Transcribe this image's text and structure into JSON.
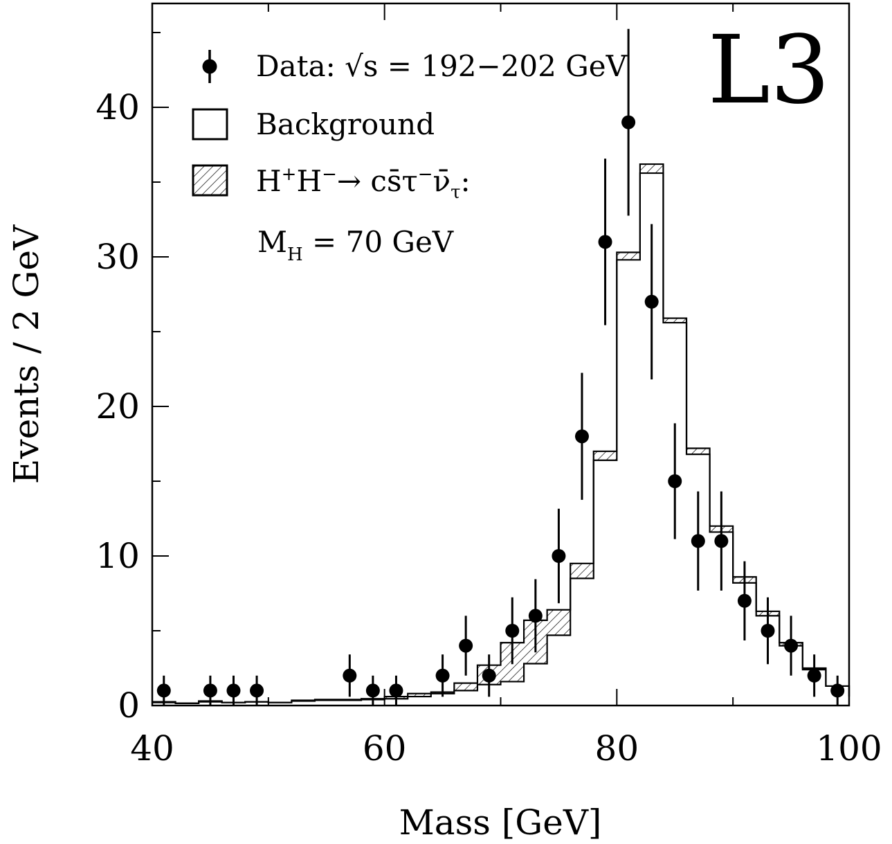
{
  "chart_data": {
    "type": "histogram",
    "xlabel": "Mass   [GeV]",
    "ylabel": "Events / 2 GeV",
    "xlim": [
      40,
      100
    ],
    "ylim": [
      0,
      47
    ],
    "x_ticks": [
      40,
      60,
      80,
      100
    ],
    "y_ticks": [
      0,
      10,
      20,
      30,
      40
    ],
    "experiment_label": "L3",
    "bin_width": 2,
    "bin_edges": [
      40,
      42,
      44,
      46,
      48,
      50,
      52,
      54,
      56,
      58,
      60,
      62,
      64,
      66,
      68,
      70,
      72,
      74,
      76,
      78,
      80,
      82,
      84,
      86,
      88,
      90,
      92,
      94,
      96,
      98,
      100
    ],
    "background": [
      0.2,
      0.15,
      0.25,
      0.2,
      0.25,
      0.2,
      0.3,
      0.35,
      0.35,
      0.4,
      0.45,
      0.6,
      0.8,
      1.0,
      1.4,
      1.6,
      2.8,
      4.7,
      8.5,
      16.4,
      29.8,
      35.6,
      25.6,
      16.8,
      11.6,
      8.2,
      6.0,
      4.0,
      2.4,
      1.3,
      0.6
    ],
    "signal_plus_background": [
      0.25,
      0.15,
      0.3,
      0.2,
      0.25,
      0.2,
      0.35,
      0.4,
      0.4,
      0.45,
      0.6,
      0.8,
      0.9,
      1.5,
      2.7,
      4.2,
      5.7,
      6.4,
      9.5,
      17.0,
      30.3,
      36.2,
      25.9,
      17.2,
      12.0,
      8.6,
      6.3,
      4.2,
      2.5,
      1.3,
      0.6
    ],
    "data": {
      "x": [
        41,
        45,
        47,
        49,
        57,
        59,
        61,
        65,
        67,
        69,
        71,
        73,
        75,
        77,
        79,
        81,
        83,
        85,
        87,
        89,
        91,
        93,
        95,
        97,
        99
      ],
      "y": [
        1,
        1,
        1,
        1,
        2,
        1,
        1,
        2,
        4,
        2,
        5,
        6,
        10,
        18,
        31,
        39,
        27,
        15,
        11,
        11,
        7,
        5,
        4,
        2,
        1
      ]
    },
    "legend": {
      "data_label": "Data: √s = 192−202 GeV",
      "background_label": "Background",
      "signal_label_parts": [
        "H",
        "+",
        "H",
        "−",
        "→ cs̄τ",
        "−",
        "ν̄",
        "τ",
        ":"
      ],
      "mass_label_parts": [
        "M",
        "H",
        " = 70  GeV"
      ]
    },
    "legend_position": "top-left",
    "grid": false
  }
}
